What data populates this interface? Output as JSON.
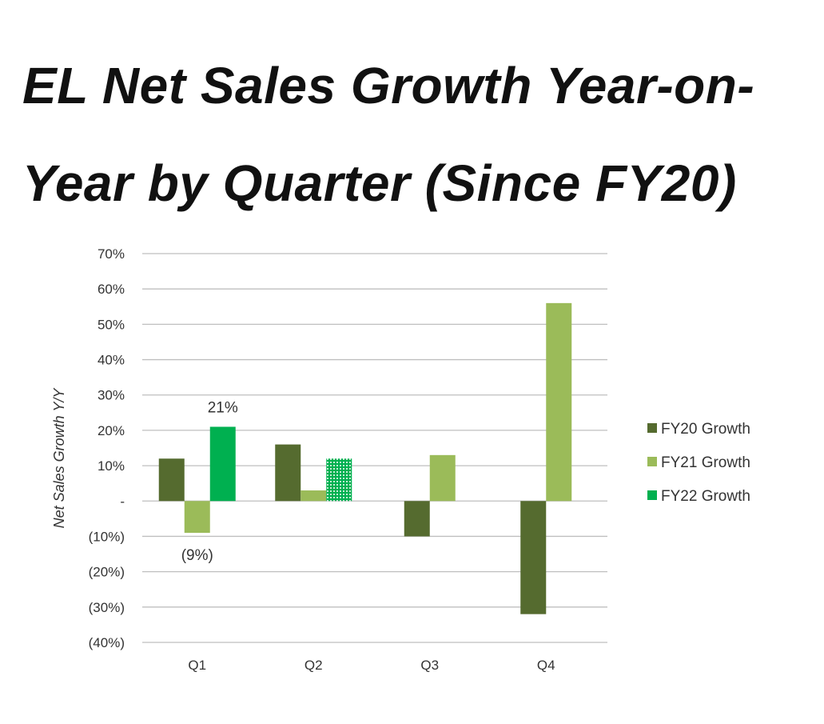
{
  "title_lines": [
    "EL Net Sales Growth Year-on-",
    "Year by Quarter (Since FY20)"
  ],
  "chart_data": {
    "type": "bar",
    "categories": [
      "Q1",
      "Q2",
      "Q3",
      "Q4"
    ],
    "series": [
      {
        "name": "FY20 Growth",
        "values": [
          12,
          16,
          -10,
          -32
        ],
        "color": "#556B2F"
      },
      {
        "name": "FY21 Growth",
        "values": [
          -9,
          3,
          13,
          56
        ],
        "color": "#9BBB59"
      },
      {
        "name": "FY22 Growth",
        "values": [
          21,
          12,
          null,
          null
        ],
        "color": "#00B050",
        "dotted": [
          false,
          true,
          false,
          false
        ]
      }
    ],
    "ylabel": "Net Sales Growth Y/Y",
    "ylim": [
      -40,
      70
    ],
    "yticks": [
      70,
      60,
      50,
      40,
      30,
      20,
      10,
      0,
      -10,
      -20,
      -30,
      -40
    ],
    "ytick_labels": [
      "70%",
      "60%",
      "50%",
      "40%",
      "30%",
      "20%",
      "10%",
      "-",
      "(10%)",
      "(20%)",
      "(30%)",
      "(40%)"
    ],
    "data_labels": [
      {
        "series": 2,
        "category": 0,
        "text": "21%"
      },
      {
        "series": 1,
        "category": 0,
        "text": "(9%)"
      }
    ],
    "grid": true,
    "legend_position": "right"
  }
}
